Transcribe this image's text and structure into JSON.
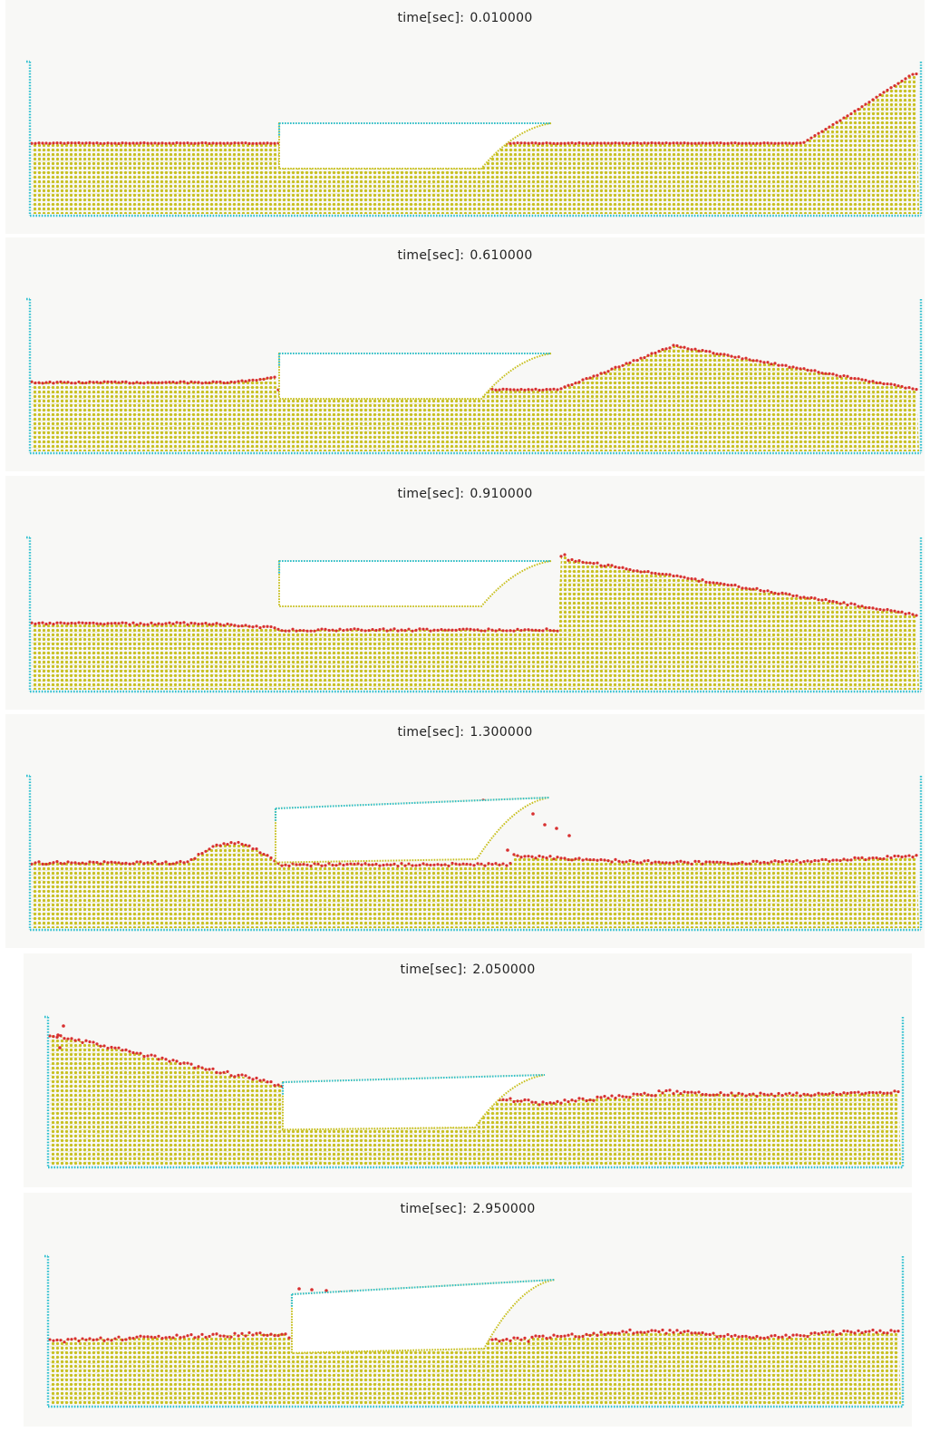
{
  "time_label": "time[sec]:",
  "colors": {
    "fluid": "#c8c020",
    "surface": "#d83030",
    "wall": "#30c0d0",
    "structure_edge": "#c8c020",
    "background": "#f8f8f6"
  },
  "frames": [
    {
      "time": "0.010000"
    },
    {
      "time": "0.610000"
    },
    {
      "time": "0.910000"
    },
    {
      "time": "1.300000"
    },
    {
      "time": "2.050000"
    },
    {
      "time": "2.950000"
    }
  ]
}
